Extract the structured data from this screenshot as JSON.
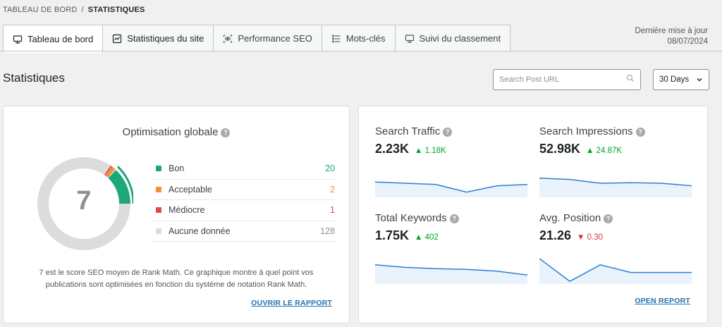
{
  "breadcrumb": {
    "parent": "TABLEAU DE BORD",
    "separator": "/",
    "current": "STATISTIQUES"
  },
  "tabs": [
    {
      "label": "Tableau de bord",
      "icon": "monitor-icon",
      "active": true
    },
    {
      "label": "Statistiques du site",
      "icon": "chart-icon",
      "active": false
    },
    {
      "label": "Performance SEO",
      "icon": "eye-icon",
      "active": false
    },
    {
      "label": "Mots-clés",
      "icon": "list-icon",
      "active": false
    },
    {
      "label": "Suivi du classement",
      "icon": "monitor-icon",
      "active": false
    }
  ],
  "last_update": {
    "label": "Dernière mise à jour",
    "date": "08/07/2024"
  },
  "page_title": "Statistiques",
  "search": {
    "placeholder": "Search Post URL",
    "value": ""
  },
  "range_select": {
    "selected": "30 Days"
  },
  "optimisation": {
    "title": "Optimisation globale",
    "score": "7",
    "legend": [
      {
        "label": "Bon",
        "value": "20",
        "color": "#1da77a"
      },
      {
        "label": "Acceptable",
        "value": "2",
        "color": "#f0932b"
      },
      {
        "label": "Médiocre",
        "value": "1",
        "color": "#e0474c"
      },
      {
        "label": "Aucune donnée",
        "value": "128",
        "color": "#dcdcde"
      }
    ],
    "description_line1": "7 est le score SEO moyen de Rank Math. Ce graphique montre à quel point vos",
    "description_line2": "publications sont optimisées en fonction du système de notation Rank Math.",
    "report_link": "OUVRIR LE RAPPORT"
  },
  "stats": [
    {
      "label": "Search Traffic",
      "value": "2.23K",
      "delta": "1.18K",
      "direction": "up",
      "trend": [
        0.45,
        0.5,
        0.55,
        0.85,
        0.6,
        0.55
      ]
    },
    {
      "label": "Search Impressions",
      "value": "52.98K",
      "delta": "24.87K",
      "direction": "up",
      "trend": [
        0.3,
        0.35,
        0.5,
        0.48,
        0.5,
        0.6
      ]
    },
    {
      "label": "Total Keywords",
      "value": "1.75K",
      "delta": "402",
      "direction": "up",
      "trend": [
        0.3,
        0.4,
        0.45,
        0.48,
        0.55,
        0.7
      ]
    },
    {
      "label": "Avg. Position",
      "value": "21.26",
      "delta": "0.30",
      "direction": "down",
      "trend": [
        0.05,
        0.95,
        0.3,
        0.6,
        0.6,
        0.6
      ]
    }
  ],
  "stats_report_link": "OPEN REPORT",
  "colors": {
    "line": "#2d7fd6",
    "fill": "#eaf2fb",
    "accent_link": "#2271b1"
  }
}
